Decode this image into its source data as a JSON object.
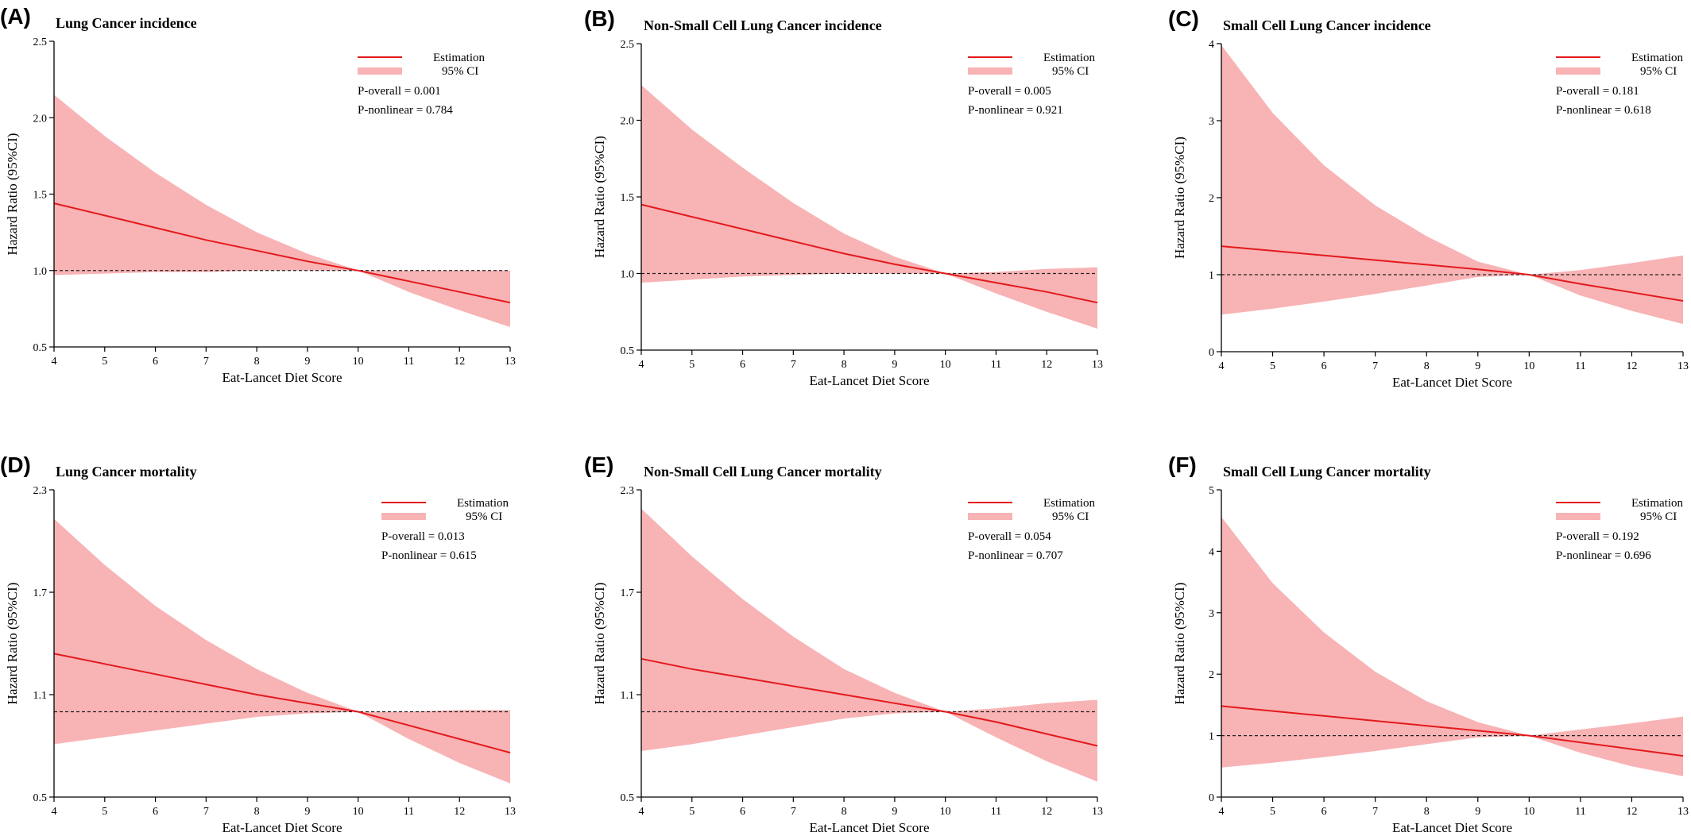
{
  "colors": {
    "estimate": "#e31a1c",
    "ci_band": "#f8b3b5",
    "reference": "#222222"
  },
  "legend": {
    "estimate_label": "Estimation",
    "ci_label": "95% CI"
  },
  "chart_data": [
    {
      "type": "line",
      "panel": "(A)",
      "title": "Lung Cancer incidence",
      "xlabel": "Eat-Lancet Diet Score",
      "ylabel": "Hazard Ratio (95%CI)",
      "xlim": [
        4,
        13
      ],
      "ylim": [
        0.5,
        2.5
      ],
      "xticks": [
        4,
        5,
        6,
        7,
        8,
        9,
        10,
        11,
        12,
        13
      ],
      "yticks": [
        "0.5",
        "1.0",
        "1.5",
        "2.0",
        "2.5"
      ],
      "reference_y": 1,
      "p_overall": "P-overall = 0.001",
      "p_nonlinear": "P-nonlinear = 0.784",
      "x": [
        4,
        5,
        6,
        7,
        8,
        9,
        10,
        11,
        12,
        13
      ],
      "series": [
        {
          "name": "Estimation",
          "values": [
            1.44,
            1.36,
            1.28,
            1.2,
            1.13,
            1.06,
            1.0,
            0.93,
            0.86,
            0.79
          ]
        },
        {
          "name": "95% CI",
          "lower": [
            0.97,
            0.98,
            0.99,
            0.99,
            1.0,
            1.0,
            1.0,
            0.86,
            0.74,
            0.63
          ],
          "upper": [
            2.15,
            1.88,
            1.64,
            1.43,
            1.25,
            1.11,
            1.0,
            1.0,
            1.0,
            1.0
          ]
        }
      ]
    },
    {
      "type": "line",
      "panel": "(B)",
      "title": "Non-Small Cell Lung Cancer incidence",
      "xlabel": "Eat-Lancet Diet Score",
      "ylabel": "Hazard Ratio (95%CI)",
      "xlim": [
        4,
        13
      ],
      "ylim": [
        0.5,
        2.5
      ],
      "xticks": [
        4,
        5,
        6,
        7,
        8,
        9,
        10,
        11,
        12,
        13
      ],
      "yticks": [
        "0.5",
        "1.0",
        "1.5",
        "2.0",
        "2.5"
      ],
      "reference_y": 1,
      "p_overall": "P-overall = 0.005",
      "p_nonlinear": "P-nonlinear = 0.921",
      "x": [
        4,
        5,
        6,
        7,
        8,
        9,
        10,
        11,
        12,
        13
      ],
      "series": [
        {
          "name": "Estimation",
          "values": [
            1.45,
            1.37,
            1.29,
            1.21,
            1.13,
            1.06,
            1.0,
            0.94,
            0.88,
            0.81
          ]
        },
        {
          "name": "95% CI",
          "lower": [
            0.94,
            0.96,
            0.98,
            0.99,
            1.0,
            1.0,
            1.0,
            0.87,
            0.75,
            0.64
          ],
          "upper": [
            2.23,
            1.94,
            1.69,
            1.46,
            1.26,
            1.11,
            1.0,
            1.01,
            1.03,
            1.04
          ]
        }
      ]
    },
    {
      "type": "line",
      "panel": "(C)",
      "title": "Small Cell Lung Cancer incidence",
      "xlabel": "Eat-Lancet Diet Score",
      "ylabel": "Hazard Ratio (95%CI)",
      "xlim": [
        4,
        13
      ],
      "ylim": [
        0,
        4
      ],
      "xticks": [
        4,
        5,
        6,
        7,
        8,
        9,
        10,
        11,
        12,
        13
      ],
      "yticks": [
        "0",
        "1",
        "2",
        "3",
        "4"
      ],
      "reference_y": 1,
      "p_overall": "P-overall = 0.181",
      "p_nonlinear": "P-nonlinear = 0.618",
      "x": [
        4,
        5,
        6,
        7,
        8,
        9,
        10,
        11,
        12,
        13
      ],
      "series": [
        {
          "name": "Estimation",
          "values": [
            1.37,
            1.31,
            1.25,
            1.19,
            1.13,
            1.07,
            1.0,
            0.88,
            0.77,
            0.66
          ]
        },
        {
          "name": "95% CI",
          "lower": [
            0.48,
            0.56,
            0.65,
            0.75,
            0.86,
            0.97,
            1.0,
            0.73,
            0.53,
            0.36
          ],
          "upper": [
            3.98,
            3.1,
            2.42,
            1.9,
            1.5,
            1.17,
            1.0,
            1.06,
            1.15,
            1.25
          ]
        }
      ]
    },
    {
      "type": "line",
      "panel": "(D)",
      "title": "Lung Cancer mortality",
      "xlabel": "Eat-Lancet Diet Score",
      "ylabel": "Hazard Ratio (95%CI)",
      "xlim": [
        4,
        13
      ],
      "ylim": [
        0.5,
        2.3
      ],
      "xticks": [
        4,
        5,
        6,
        7,
        8,
        9,
        10,
        11,
        12,
        13
      ],
      "yticks": [
        "0.5",
        "1.1",
        "1.7",
        "2.3"
      ],
      "reference_y": 1,
      "p_overall": "P-overall = 0.013",
      "p_nonlinear": "P-nonlinear = 0.615",
      "x": [
        4,
        5,
        6,
        7,
        8,
        9,
        10,
        11,
        12,
        13
      ],
      "series": [
        {
          "name": "Estimation",
          "values": [
            1.34,
            1.28,
            1.22,
            1.16,
            1.1,
            1.05,
            1.0,
            0.92,
            0.84,
            0.76
          ]
        },
        {
          "name": "95% CI",
          "lower": [
            0.81,
            0.85,
            0.89,
            0.93,
            0.97,
            0.99,
            1.0,
            0.84,
            0.7,
            0.58
          ],
          "upper": [
            2.13,
            1.86,
            1.62,
            1.42,
            1.25,
            1.11,
            1.0,
            1.0,
            1.01,
            1.01
          ]
        }
      ]
    },
    {
      "type": "line",
      "panel": "(E)",
      "title": "Non-Small Cell Lung Cancer mortality",
      "xlabel": "Eat-Lancet Diet Score",
      "ylabel": "Hazard Ratio (95%CI)",
      "xlim": [
        4,
        13
      ],
      "ylim": [
        0.5,
        2.3
      ],
      "xticks": [
        4,
        5,
        6,
        7,
        8,
        9,
        10,
        11,
        12,
        13
      ],
      "yticks": [
        "0.5",
        "1.1",
        "1.7",
        "2.3"
      ],
      "reference_y": 1,
      "p_overall": "P-overall = 0.054",
      "p_nonlinear": "P-nonlinear = 0.707",
      "x": [
        4,
        5,
        6,
        7,
        8,
        9,
        10,
        11,
        12,
        13
      ],
      "series": [
        {
          "name": "Estimation",
          "values": [
            1.31,
            1.25,
            1.2,
            1.15,
            1.1,
            1.05,
            1.0,
            0.94,
            0.87,
            0.8
          ]
        },
        {
          "name": "95% CI",
          "lower": [
            0.77,
            0.81,
            0.86,
            0.91,
            0.96,
            0.99,
            1.0,
            0.85,
            0.71,
            0.59
          ],
          "upper": [
            2.19,
            1.91,
            1.66,
            1.44,
            1.25,
            1.11,
            1.0,
            1.02,
            1.05,
            1.07
          ]
        }
      ]
    },
    {
      "type": "line",
      "panel": "(F)",
      "title": "Small Cell Lung Cancer mortality",
      "xlabel": "Eat-Lancet Diet Score",
      "ylabel": "Hazard Ratio (95%CI)",
      "xlim": [
        4,
        13
      ],
      "ylim": [
        0,
        5
      ],
      "xticks": [
        4,
        5,
        6,
        7,
        8,
        9,
        10,
        11,
        12,
        13
      ],
      "yticks": [
        "0",
        "1",
        "2",
        "3",
        "4",
        "5"
      ],
      "reference_y": 1,
      "p_overall": "P-overall = 0.192",
      "p_nonlinear": "P-nonlinear = 0.696",
      "x": [
        4,
        5,
        6,
        7,
        8,
        9,
        10,
        11,
        12,
        13
      ],
      "series": [
        {
          "name": "Estimation",
          "values": [
            1.48,
            1.4,
            1.32,
            1.24,
            1.16,
            1.08,
            1.0,
            0.89,
            0.78,
            0.67
          ]
        },
        {
          "name": "95% CI",
          "lower": [
            0.48,
            0.56,
            0.65,
            0.75,
            0.86,
            0.97,
            1.0,
            0.72,
            0.5,
            0.34
          ],
          "upper": [
            4.56,
            3.48,
            2.68,
            2.04,
            1.56,
            1.22,
            1.0,
            1.1,
            1.2,
            1.31
          ]
        }
      ]
    }
  ]
}
